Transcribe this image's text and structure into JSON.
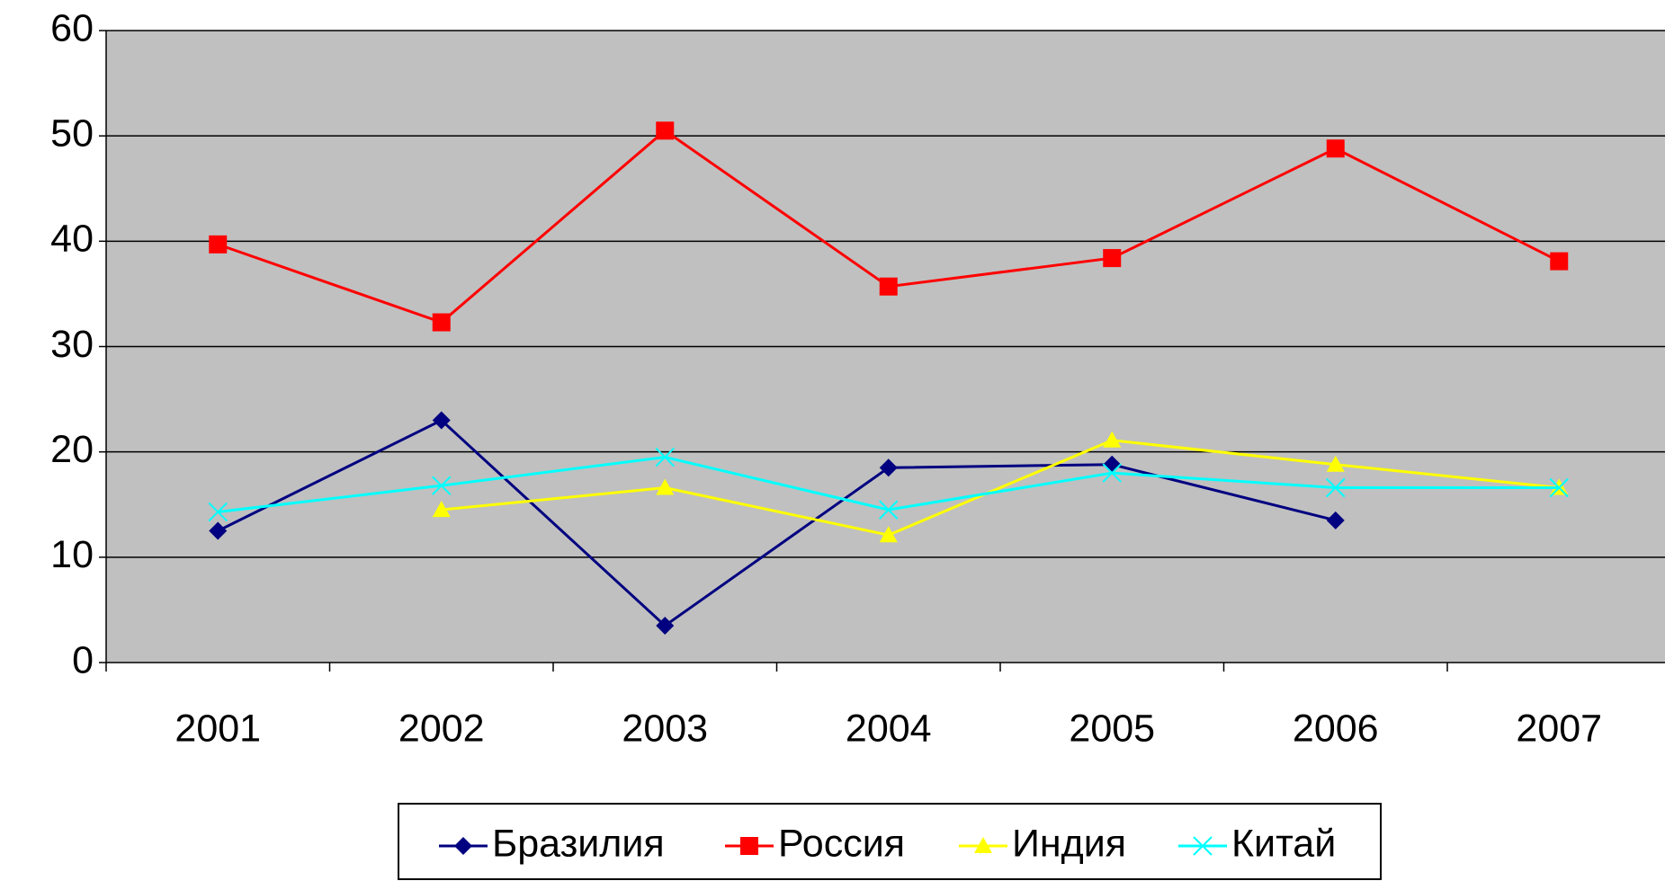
{
  "chart_data": {
    "type": "line",
    "categories": [
      "2001",
      "2002",
      "2003",
      "2004",
      "2005",
      "2006",
      "2007"
    ],
    "series": [
      {
        "name": "Бразилия",
        "color": "#000080",
        "marker": "diamond",
        "values": [
          12.5,
          23,
          3.5,
          18.5,
          18.8,
          13.5,
          null
        ]
      },
      {
        "name": "Россия",
        "color": "#ff0000",
        "marker": "square",
        "values": [
          39.7,
          32.3,
          50.5,
          35.7,
          38.4,
          48.8,
          38.1
        ]
      },
      {
        "name": "Индия",
        "color": "#ffff00",
        "marker": "triangle",
        "values": [
          null,
          14.5,
          16.6,
          12.1,
          21.1,
          18.8,
          16.6
        ]
      },
      {
        "name": "Китай",
        "color": "#00ffff",
        "marker": "x",
        "values": [
          14.3,
          16.8,
          19.5,
          14.5,
          18.0,
          16.6,
          16.6
        ]
      }
    ],
    "ylim": [
      0,
      60
    ],
    "yticks": [
      0,
      10,
      20,
      30,
      40,
      50,
      60
    ],
    "grid": true,
    "legend": "bottom"
  }
}
